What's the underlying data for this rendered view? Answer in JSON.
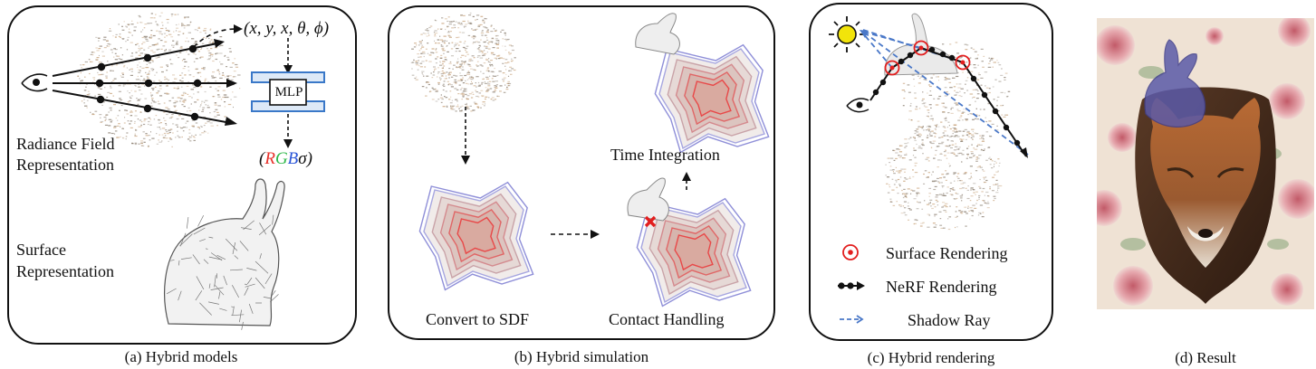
{
  "panel_a": {
    "ray_params": "(x, y, x, θ, ϕ)",
    "mlp_label": "MLP",
    "output_open": "(",
    "output_r": "R",
    "output_g": "G",
    "output_b": "B",
    "output_sigma": "σ",
    "output_close": ")",
    "radiance_label_1": "Radiance Field",
    "radiance_label_2": "Representation",
    "surface_label_1": "Surface",
    "surface_label_2": "Representation",
    "caption": "(a) Hybrid models"
  },
  "panel_b": {
    "time_integration": "Time Integration",
    "convert_sdf": "Convert to SDF",
    "contact_handling": "Contact Handling",
    "caption": "(b) Hybrid simulation"
  },
  "panel_c": {
    "legend_surface": "Surface Rendering",
    "legend_nerf": "NeRF Rendering",
    "legend_shadow": "Shadow Ray",
    "caption": "(c) Hybrid rendering"
  },
  "panel_d": {
    "caption": "(d) Result"
  },
  "colors": {
    "red": "#e8302a",
    "green": "#2fb84a",
    "blue": "#2a55d8",
    "shadow_blue": "#4a78c8",
    "mlp_blue": "#3a78c8",
    "sun_yellow": "#f2e40a",
    "sdf_purple": "#8f8fd8"
  }
}
